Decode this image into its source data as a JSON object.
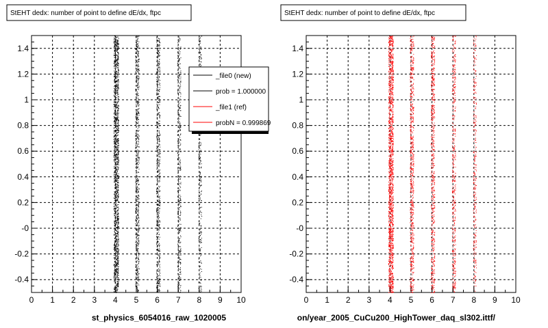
{
  "footer": "",
  "chart_data": [
    {
      "type": "scatter",
      "title": "StEHT dedx: number of point to define dE/dx, ftpc",
      "xlabel": "st_physics_6054016_raw_1020005",
      "ylabel": "",
      "xlim": [
        0,
        10
      ],
      "ylim": [
        -0.5,
        1.5
      ],
      "xticks": [
        0,
        1,
        2,
        3,
        4,
        5,
        6,
        7,
        8,
        9,
        10
      ],
      "yticks": [
        -0.4,
        -0.2,
        0,
        0.2,
        0.4,
        0.6,
        0.8,
        1,
        1.2,
        1.4
      ],
      "ytick_labels": [
        "-0.4",
        "-0.2",
        "-0",
        "0.2",
        "0.4",
        "0.6",
        "0.8",
        "1",
        "1.2",
        "1.4"
      ],
      "grid": true,
      "color": "#000000",
      "series": [
        {
          "x": [
            4,
            5,
            6,
            7,
            8
          ],
          "y_range": [
            -0.5,
            1.5
          ],
          "relative_density": [
            1.0,
            0.45,
            0.4,
            0.3,
            0.2
          ]
        }
      ],
      "legend": {
        "placement": "top-right",
        "entries": [
          {
            "label": "_file0 (new)",
            "color": "#000000"
          },
          {
            "label": "prob = 1.000000",
            "color": "#000000"
          },
          {
            "label": "_file1 (ref)",
            "color": "#ff0000"
          },
          {
            "label": "probN = 0.999869",
            "color": "#ff0000"
          }
        ]
      }
    },
    {
      "type": "scatter",
      "title": "StEHT dedx: number of point to define dE/dx, ftpc",
      "xlabel": "on/year_2005_CuCu200_HighTower_daq_sl302.ittf/",
      "ylabel": "",
      "xlim": [
        0,
        10
      ],
      "ylim": [
        -0.5,
        1.5
      ],
      "xticks": [
        0,
        1,
        2,
        3,
        4,
        5,
        6,
        7,
        8,
        9,
        10
      ],
      "yticks": [
        -0.4,
        -0.2,
        0,
        0.2,
        0.4,
        0.6,
        0.8,
        1,
        1.2,
        1.4
      ],
      "ytick_labels": [
        "-0.4",
        "-0.2",
        "-0",
        "0.2",
        "0.4",
        "0.6",
        "0.8",
        "1",
        "1.2",
        "1.4"
      ],
      "grid": true,
      "color": "#ff0000",
      "series": [
        {
          "x": [
            4,
            5,
            6,
            7,
            8
          ],
          "y_range": [
            -0.5,
            1.5
          ],
          "relative_density": [
            1.0,
            0.45,
            0.4,
            0.3,
            0.2
          ]
        }
      ]
    }
  ]
}
